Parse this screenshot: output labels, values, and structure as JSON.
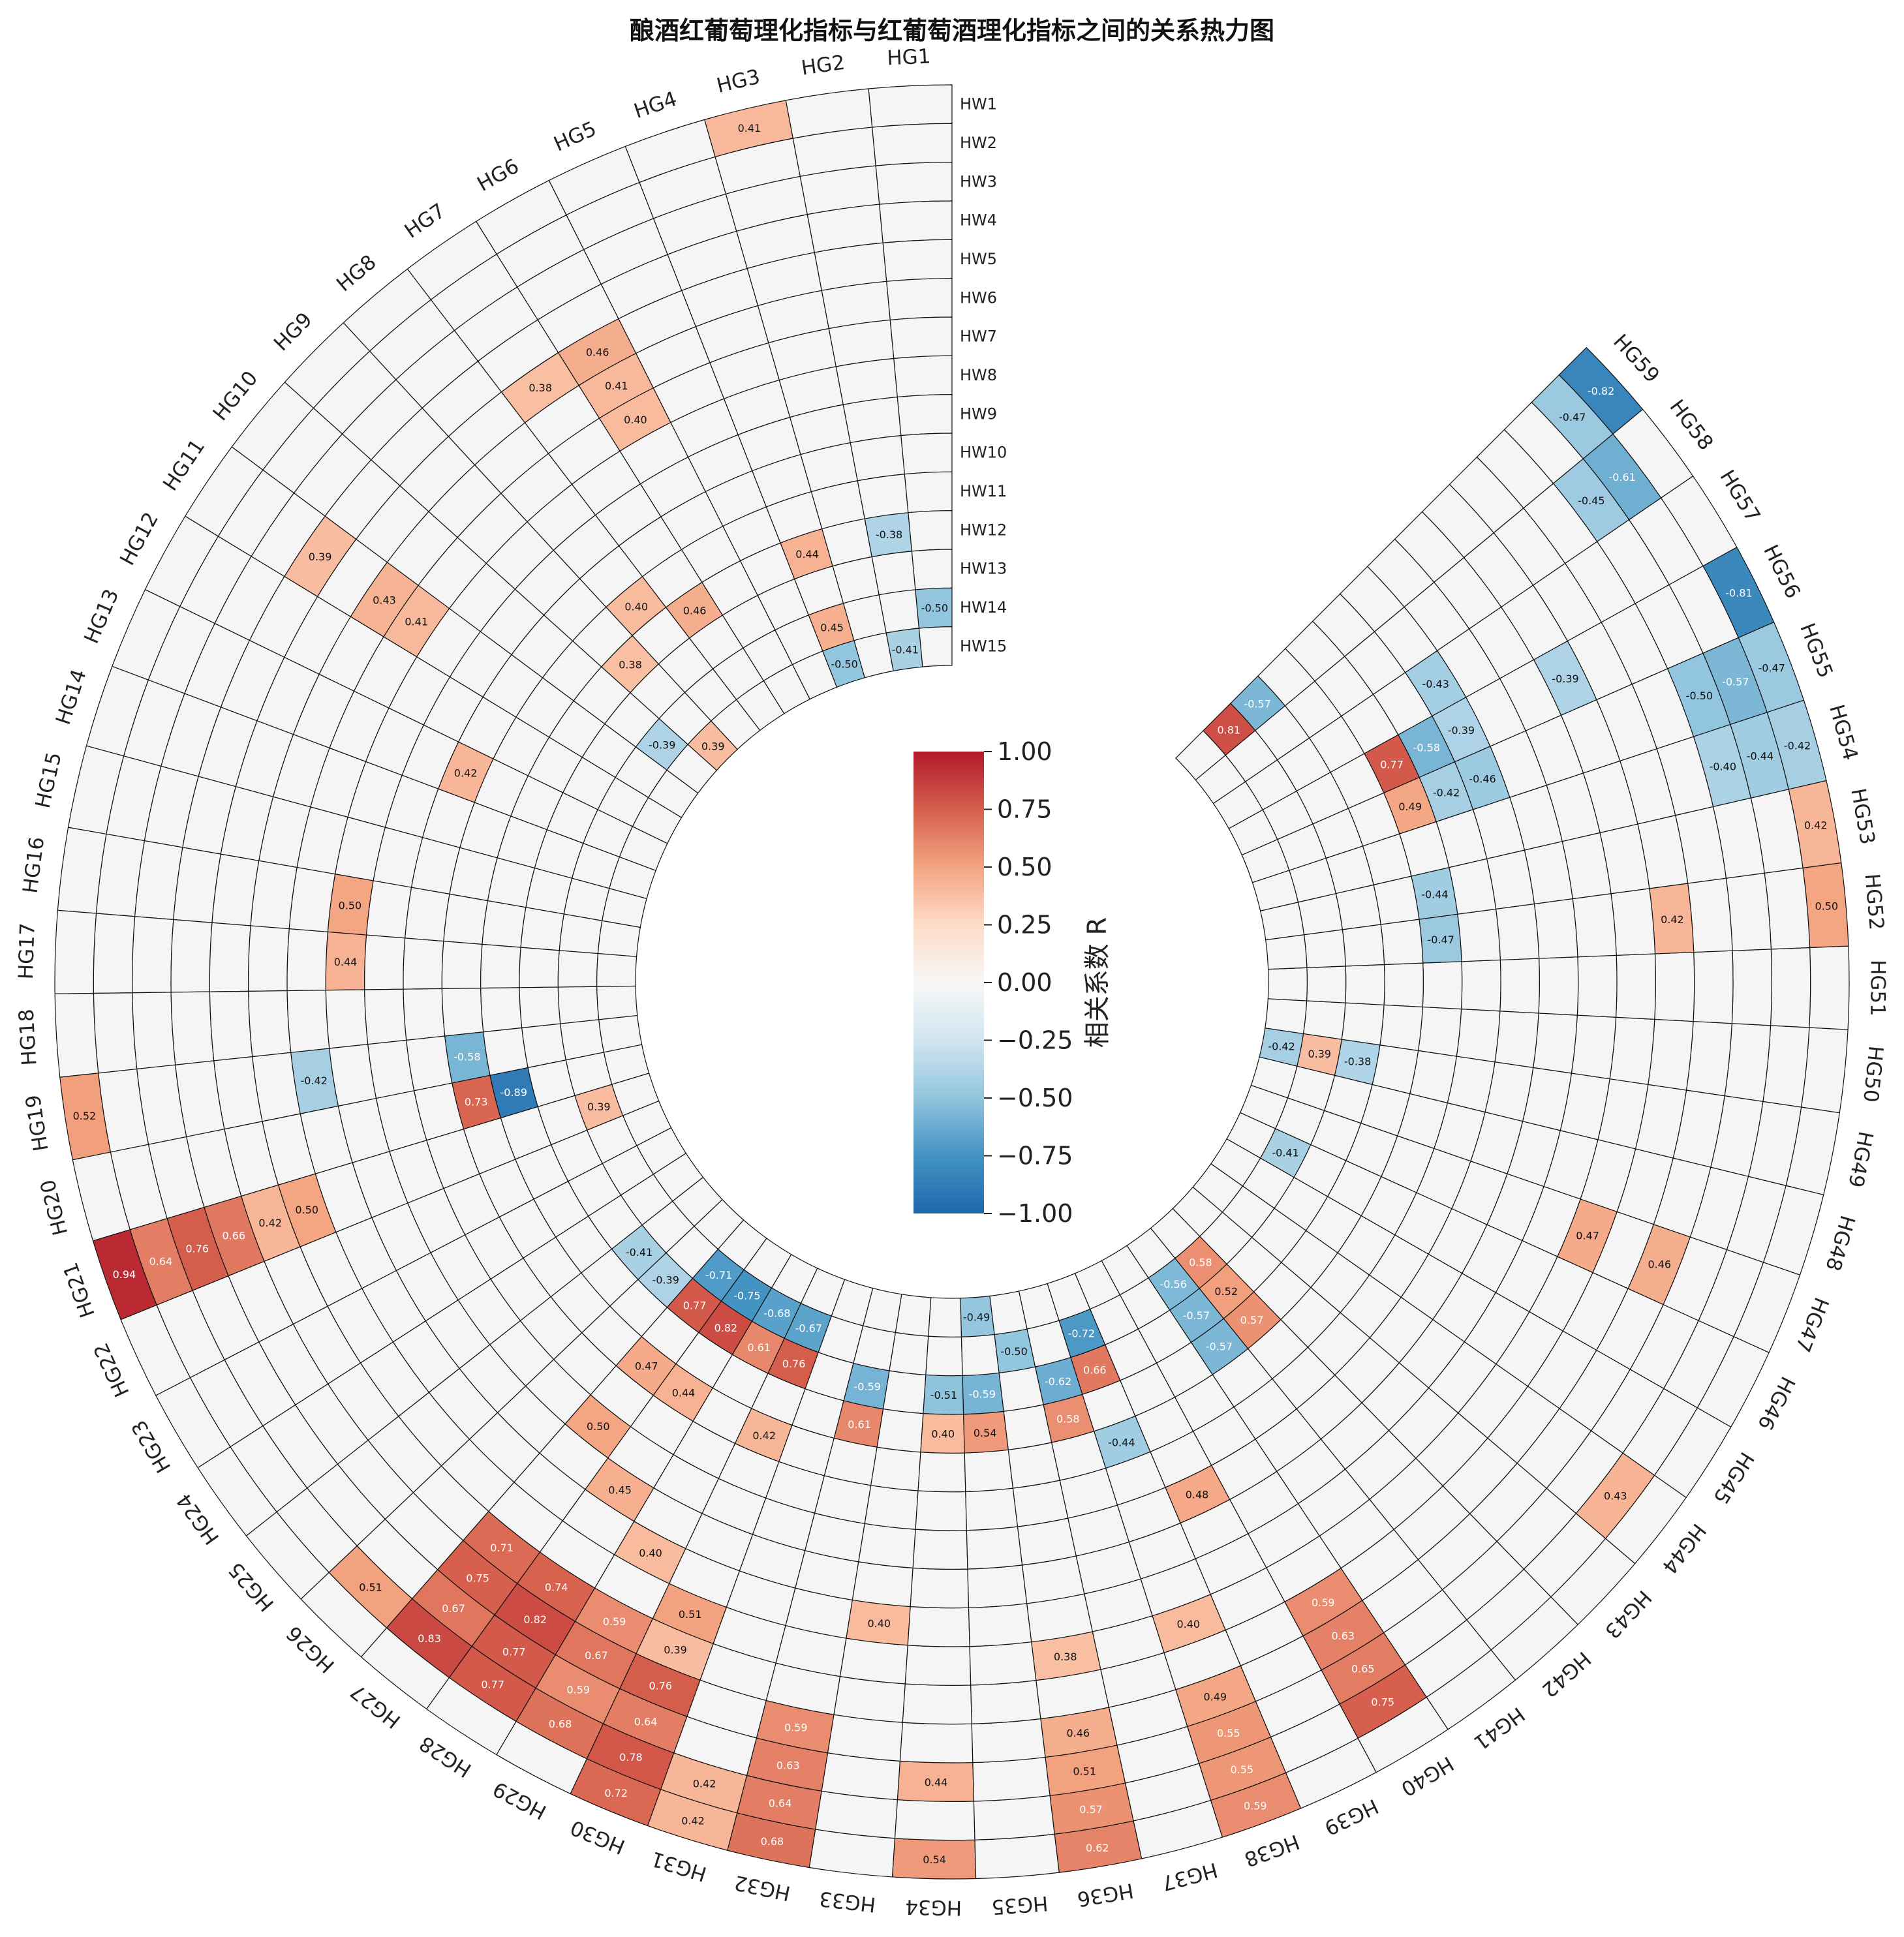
{
  "chart_data": {
    "type": "heatmap",
    "layout": "circular",
    "title": "酿酒红葡萄理化指标与红葡萄酒理化指标之间的关系热力图",
    "columns": [
      "HG1",
      "HG2",
      "HG3",
      "HG4",
      "HG5",
      "HG6",
      "HG7",
      "HG8",
      "HG9",
      "HG10",
      "HG11",
      "HG12",
      "HG13",
      "HG14",
      "HG15",
      "HG16",
      "HG17",
      "HG18",
      "HG19",
      "HG20",
      "HG21",
      "HG22",
      "HG23",
      "HG24",
      "HG25",
      "HG26",
      "HG27",
      "HG28",
      "HG29",
      "HG30",
      "HG31",
      "HG32",
      "HG33",
      "HG34",
      "HG35",
      "HG36",
      "HG37",
      "HG38",
      "HG39",
      "HG40",
      "HG41",
      "HG42",
      "HG43",
      "HG44",
      "HG45",
      "HG46",
      "HG47",
      "HG48",
      "HG49",
      "HG50",
      "HG51",
      "HG52",
      "HG53",
      "HG54",
      "HG55",
      "HG56",
      "HG57",
      "HG58",
      "HG59"
    ],
    "rows": [
      "HW1",
      "HW2",
      "HW3",
      "HW4",
      "HW5",
      "HW6",
      "HW7",
      "HW8",
      "HW9",
      "HW10",
      "HW11",
      "HW12",
      "HW13",
      "HW14",
      "HW15"
    ],
    "row_order_note": "HW1 is the outermost ring, HW15 the innermost ring",
    "significant_cells": [
      {
        "col": "HG3",
        "row": "HW1",
        "r": 0.41
      },
      {
        "col": "HG6",
        "row": "HW5",
        "r": 0.46
      },
      {
        "col": "HG6",
        "row": "HW6",
        "r": 0.41
      },
      {
        "col": "HG6",
        "row": "HW7",
        "r": 0.4
      },
      {
        "col": "HG7",
        "row": "HW5",
        "r": 0.38
      },
      {
        "col": "HG11",
        "row": "HW4",
        "r": 0.39
      },
      {
        "col": "HG11",
        "row": "HW6",
        "r": 0.43
      },
      {
        "col": "HG11",
        "row": "HW7",
        "r": 0.41
      },
      {
        "col": "HG8",
        "row": "HW11",
        "r": 0.4
      },
      {
        "col": "HG7",
        "row": "HW12",
        "r": 0.46
      },
      {
        "col": "HG4",
        "row": "HW12",
        "r": 0.44
      },
      {
        "col": "HG2",
        "row": "HW12",
        "r": -0.38
      },
      {
        "col": "HG1",
        "row": "HW14",
        "r": -0.5
      },
      {
        "col": "HG4",
        "row": "HW14",
        "r": 0.45
      },
      {
        "col": "HG4",
        "row": "HW15",
        "r": -0.5
      },
      {
        "col": "HG2",
        "row": "HW15",
        "r": -0.41
      },
      {
        "col": "HG9",
        "row": "HW12",
        "r": 0.38
      },
      {
        "col": "HG10",
        "row": "HW14",
        "r": -0.39
      },
      {
        "col": "HG9",
        "row": "HW15",
        "r": 0.39
      },
      {
        "col": "HG13",
        "row": "HW10",
        "r": 0.42
      },
      {
        "col": "HG16",
        "row": "HW8",
        "r": 0.5
      },
      {
        "col": "HG17",
        "row": "HW8",
        "r": 0.44
      },
      {
        "col": "HG19",
        "row": "HW1",
        "r": 0.52
      },
      {
        "col": "HG19",
        "row": "HW7",
        "r": -0.42
      },
      {
        "col": "HG19",
        "row": "HW11",
        "r": -0.58
      },
      {
        "col": "HG21",
        "row": "HW1",
        "r": 0.94
      },
      {
        "col": "HG21",
        "row": "HW2",
        "r": 0.64
      },
      {
        "col": "HG21",
        "row": "HW3",
        "r": 0.76
      },
      {
        "col": "HG21",
        "row": "HW4",
        "r": 0.66
      },
      {
        "col": "HG21",
        "row": "HW5",
        "r": 0.42
      },
      {
        "col": "HG21",
        "row": "HW6",
        "r": 0.5
      },
      {
        "col": "HG20",
        "row": "HW11",
        "r": 0.73
      },
      {
        "col": "HG20",
        "row": "HW12",
        "r": -0.89
      },
      {
        "col": "HG21",
        "row": "HW14",
        "r": 0.39
      },
      {
        "col": "HG25",
        "row": "HW13",
        "r": -0.41
      },
      {
        "col": "HG26",
        "row": "HW13",
        "r": -0.39
      },
      {
        "col": "HG27",
        "row": "HW14",
        "r": -0.71
      },
      {
        "col": "HG27",
        "row": "HW13",
        "r": 0.77
      },
      {
        "col": "HG28",
        "row": "HW14",
        "r": -0.75
      },
      {
        "col": "HG28",
        "row": "HW13",
        "r": 0.82
      },
      {
        "col": "HG29",
        "row": "HW14",
        "r": -0.68
      },
      {
        "col": "HG29",
        "row": "HW13",
        "r": 0.61
      },
      {
        "col": "HG30",
        "row": "HW14",
        "r": -0.67
      },
      {
        "col": "HG30",
        "row": "HW13",
        "r": 0.76
      },
      {
        "col": "HG27",
        "row": "HW11",
        "r": 0.47
      },
      {
        "col": "HG28",
        "row": "HW11",
        "r": 0.44
      },
      {
        "col": "HG30",
        "row": "HW11",
        "r": 0.42
      },
      {
        "col": "HG27",
        "row": "HW9",
        "r": 0.5
      },
      {
        "col": "HG28",
        "row": "HW8",
        "r": 0.45
      },
      {
        "col": "HG29",
        "row": "HW7",
        "r": 0.4
      },
      {
        "col": "HG30",
        "row": "HW6",
        "r": 0.51
      },
      {
        "col": "HG30",
        "row": "HW5",
        "r": 0.39
      },
      {
        "col": "HG26",
        "row": "HW2",
        "r": 0.51
      },
      {
        "col": "HG27",
        "row": "HW2",
        "r": 0.83
      },
      {
        "col": "HG27",
        "row": "HW3",
        "r": 0.67
      },
      {
        "col": "HG27",
        "row": "HW4",
        "r": 0.75
      },
      {
        "col": "HG27",
        "row": "HW5",
        "r": 0.71
      },
      {
        "col": "HG28",
        "row": "HW2",
        "r": 0.77
      },
      {
        "col": "HG28",
        "row": "HW3",
        "r": 0.77
      },
      {
        "col": "HG28",
        "row": "HW4",
        "r": 0.82
      },
      {
        "col": "HG28",
        "row": "HW5",
        "r": 0.74
      },
      {
        "col": "HG29",
        "row": "HW2",
        "r": 0.68
      },
      {
        "col": "HG29",
        "row": "HW3",
        "r": 0.59
      },
      {
        "col": "HG29",
        "row": "HW4",
        "r": 0.67
      },
      {
        "col": "HG29",
        "row": "HW5",
        "r": 0.59
      },
      {
        "col": "HG30",
        "row": "HW2",
        "r": 0.78
      },
      {
        "col": "HG30",
        "row": "HW3",
        "r": 0.64
      },
      {
        "col": "HG30",
        "row": "HW4",
        "r": 0.76
      },
      {
        "col": "HG30",
        "row": "HW1",
        "r": 0.72
      },
      {
        "col": "HG31",
        "row": "HW1",
        "r": 0.42
      },
      {
        "col": "HG31",
        "row": "HW2",
        "r": 0.42
      },
      {
        "col": "HG32",
        "row": "HW1",
        "r": 0.68
      },
      {
        "col": "HG32",
        "row": "HW2",
        "r": 0.64
      },
      {
        "col": "HG32",
        "row": "HW3",
        "r": 0.63
      },
      {
        "col": "HG32",
        "row": "HW4",
        "r": 0.59
      },
      {
        "col": "HG32",
        "row": "HW13",
        "r": -0.59
      },
      {
        "col": "HG32",
        "row": "HW12",
        "r": 0.61
      },
      {
        "col": "HG33",
        "row": "HW7",
        "r": 0.4
      },
      {
        "col": "HG34",
        "row": "HW13",
        "r": -0.51
      },
      {
        "col": "HG34",
        "row": "HW12",
        "r": 0.4
      },
      {
        "col": "HG34",
        "row": "HW1",
        "r": 0.54
      },
      {
        "col": "HG34",
        "row": "HW3",
        "r": 0.44
      },
      {
        "col": "HG35",
        "row": "HW13",
        "r": -0.59
      },
      {
        "col": "HG35",
        "row": "HW12",
        "r": 0.54
      },
      {
        "col": "HG36",
        "row": "HW14",
        "r": -0.5
      },
      {
        "col": "HG35",
        "row": "HW15",
        "r": -0.49
      },
      {
        "col": "HG36",
        "row": "HW1",
        "r": 0.62
      },
      {
        "col": "HG36",
        "row": "HW2",
        "r": 0.57
      },
      {
        "col": "HG36",
        "row": "HW3",
        "r": 0.51
      },
      {
        "col": "HG36",
        "row": "HW4",
        "r": 0.46
      },
      {
        "col": "HG36",
        "row": "HW6",
        "r": 0.38
      },
      {
        "col": "HG37",
        "row": "HW13",
        "r": -0.62
      },
      {
        "col": "HG37",
        "row": "HW12",
        "r": 0.58
      },
      {
        "col": "HG38",
        "row": "HW14",
        "r": -0.72
      },
      {
        "col": "HG38",
        "row": "HW13",
        "r": 0.66
      },
      {
        "col": "HG38",
        "row": "HW11",
        "r": -0.44
      },
      {
        "col": "HG38",
        "row": "HW1",
        "r": 0.59
      },
      {
        "col": "HG38",
        "row": "HW2",
        "r": 0.55
      },
      {
        "col": "HG38",
        "row": "HW3",
        "r": 0.55
      },
      {
        "col": "HG38",
        "row": "HW4",
        "r": 0.49
      },
      {
        "col": "HG38",
        "row": "HW6",
        "r": 0.4
      },
      {
        "col": "HG39",
        "row": "HW9",
        "r": 0.48
      },
      {
        "col": "HG40",
        "row": "HW2",
        "r": 0.75
      },
      {
        "col": "HG40",
        "row": "HW3",
        "r": 0.65
      },
      {
        "col": "HG40",
        "row": "HW4",
        "r": 0.63
      },
      {
        "col": "HG40",
        "row": "HW5",
        "r": 0.59
      },
      {
        "col": "HG41",
        "row": "HW14",
        "r": -0.56
      },
      {
        "col": "HG41",
        "row": "HW13",
        "r": -0.57
      },
      {
        "col": "HG41",
        "row": "HW12",
        "r": -0.57
      },
      {
        "col": "HG42",
        "row": "HW14",
        "r": 0.58
      },
      {
        "col": "HG42",
        "row": "HW13",
        "r": 0.52
      },
      {
        "col": "HG42",
        "row": "HW12",
        "r": 0.57
      },
      {
        "col": "HG44",
        "row": "HW2",
        "r": 0.43
      },
      {
        "col": "HG46",
        "row": "HW14",
        "r": -0.41
      },
      {
        "col": "HG47",
        "row": "HW6",
        "r": 0.47
      },
      {
        "col": "HG47",
        "row": "HW4",
        "r": 0.46
      },
      {
        "col": "HG49",
        "row": "HW15",
        "r": -0.42
      },
      {
        "col": "HG49",
        "row": "HW14",
        "r": 0.39
      },
      {
        "col": "HG49",
        "row": "HW13",
        "r": -0.38
      },
      {
        "col": "HG52",
        "row": "HW1",
        "r": 0.5
      },
      {
        "col": "HG53",
        "row": "HW1",
        "r": 0.42
      },
      {
        "col": "HG52",
        "row": "HW5",
        "r": 0.42
      },
      {
        "col": "HG52",
        "row": "HW11",
        "r": -0.47
      },
      {
        "col": "HG53",
        "row": "HW11",
        "r": -0.44
      },
      {
        "col": "HG55",
        "row": "HW11",
        "r": 0.49
      },
      {
        "col": "HG55",
        "row": "HW10",
        "r": -0.42
      },
      {
        "col": "HG55",
        "row": "HW9",
        "r": -0.46
      },
      {
        "col": "HG56",
        "row": "HW11",
        "r": 0.77
      },
      {
        "col": "HG56",
        "row": "HW10",
        "r": -0.58
      },
      {
        "col": "HG56",
        "row": "HW9",
        "r": -0.39
      },
      {
        "col": "HG57",
        "row": "HW9",
        "r": -0.43
      },
      {
        "col": "HG56",
        "row": "HW6",
        "r": -0.39
      },
      {
        "col": "HG54",
        "row": "HW3",
        "r": -0.4
      },
      {
        "col": "HG54",
        "row": "HW2",
        "r": -0.44
      },
      {
        "col": "HG54",
        "row": "HW1",
        "r": -0.42
      },
      {
        "col": "HG55",
        "row": "HW3",
        "r": -0.5
      },
      {
        "col": "HG55",
        "row": "HW2",
        "r": -0.57
      },
      {
        "col": "HG55",
        "row": "HW1",
        "r": -0.47
      },
      {
        "col": "HG56",
        "row": "HW1",
        "r": -0.81
      },
      {
        "col": "HG59",
        "row": "HW14",
        "r": 0.81
      },
      {
        "col": "HG59",
        "row": "HW13",
        "r": -0.57
      },
      {
        "col": "HG58",
        "row": "HW3",
        "r": -0.45
      },
      {
        "col": "HG58",
        "row": "HW2",
        "r": -0.61
      },
      {
        "col": "HG59",
        "row": "HW2",
        "r": -0.47
      },
      {
        "col": "HG59",
        "row": "HW1",
        "r": -0.82
      }
    ],
    "colorbar": {
      "label": "相关系数 R",
      "range": [
        -1,
        1
      ],
      "ticks": [
        1.0,
        0.75,
        0.5,
        0.25,
        0.0,
        -0.25,
        -0.5,
        -0.75,
        -1.0
      ],
      "tick_labels": [
        "1.00",
        "0.75",
        "0.50",
        "0.25",
        "0.00",
        "−0.25",
        "−0.50",
        "−0.75",
        "−1.00"
      ],
      "colormap": "RdBu_r"
    },
    "empty_cell_color": "#f5f5f5"
  }
}
